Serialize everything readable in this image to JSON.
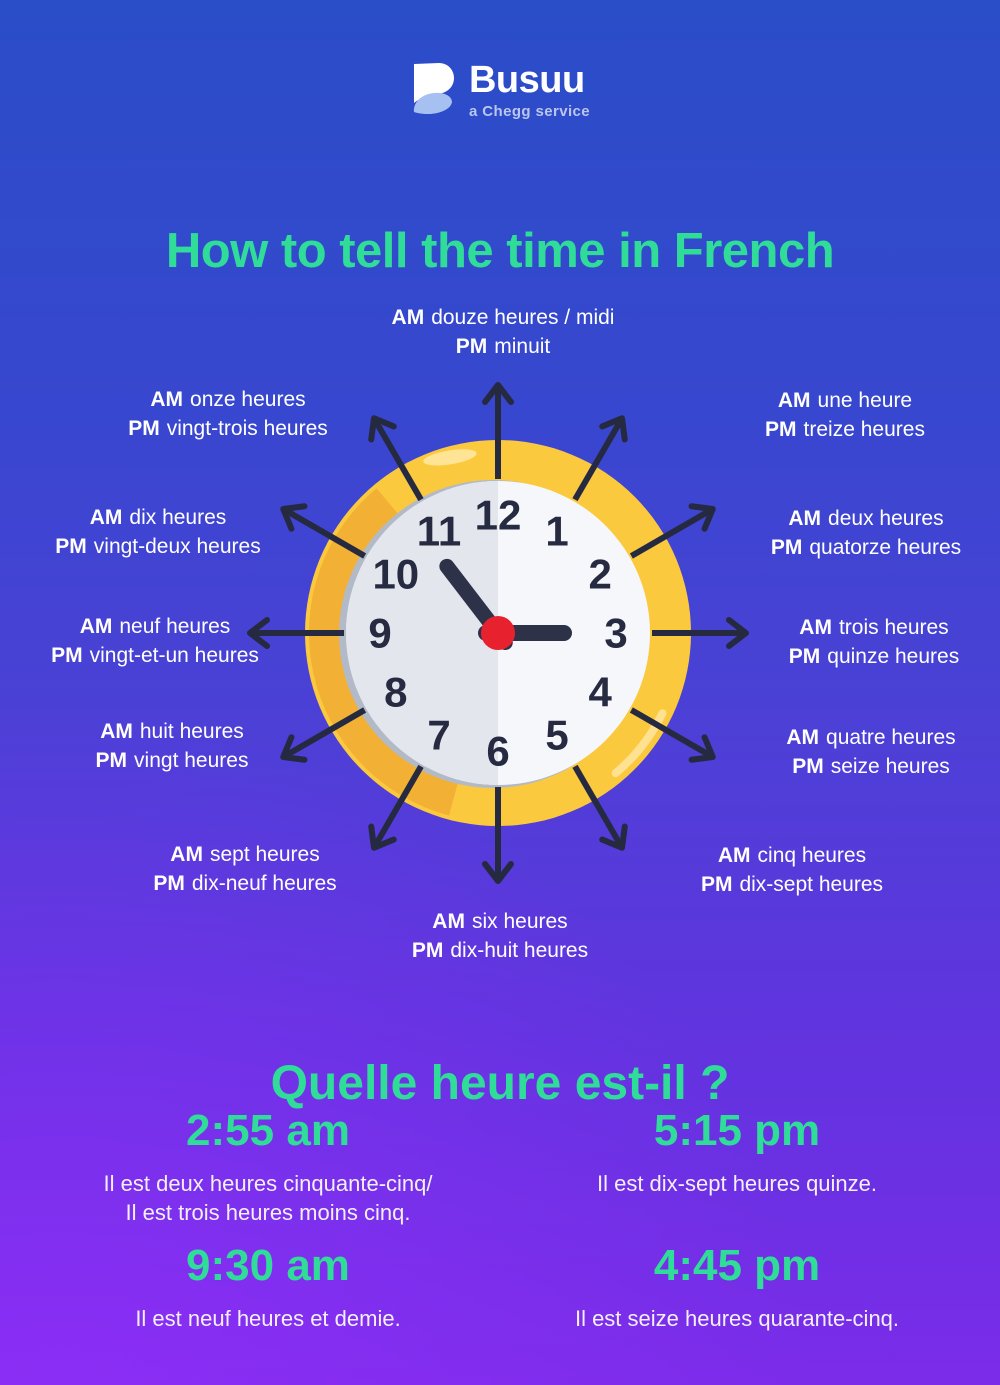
{
  "logo": {
    "brand": "Busuu",
    "subtitle": "a Chegg service"
  },
  "title": "How to tell the time in French",
  "clock": {
    "time_shown": "2:55",
    "numbers": [
      "12",
      "1",
      "2",
      "3",
      "4",
      "5",
      "6",
      "7",
      "8",
      "9",
      "10",
      "11"
    ],
    "hands": {
      "hour_angle_deg": 90,
      "minute_angle_deg": 322.5
    },
    "labels": [
      {
        "hour": "12",
        "am_tag": "AM",
        "am": "douze heures / midi",
        "pm_tag": "PM",
        "pm": "minuit"
      },
      {
        "hour": "1",
        "am_tag": "AM",
        "am": "une heure",
        "pm_tag": "PM",
        "pm": "treize heures"
      },
      {
        "hour": "2",
        "am_tag": "AM",
        "am": "deux heures",
        "pm_tag": "PM",
        "pm": "quatorze heures"
      },
      {
        "hour": "3",
        "am_tag": "AM",
        "am": "trois heures",
        "pm_tag": "PM",
        "pm": "quinze heures"
      },
      {
        "hour": "4",
        "am_tag": "AM",
        "am": "quatre heures",
        "pm_tag": "PM",
        "pm": "seize heures"
      },
      {
        "hour": "5",
        "am_tag": "AM",
        "am": "cinq heures",
        "pm_tag": "PM",
        "pm": "dix-sept heures"
      },
      {
        "hour": "6",
        "am_tag": "AM",
        "am": "six heures",
        "pm_tag": "PM",
        "pm": "dix-huit heures"
      },
      {
        "hour": "7",
        "am_tag": "AM",
        "am": "sept heures",
        "pm_tag": "PM",
        "pm": "dix-neuf heures"
      },
      {
        "hour": "8",
        "am_tag": "AM",
        "am": "huit heures",
        "pm_tag": "PM",
        "pm": "vingt heures"
      },
      {
        "hour": "9",
        "am_tag": "AM",
        "am": "neuf heures",
        "pm_tag": "PM",
        "pm": "vingt-et-un heures"
      },
      {
        "hour": "10",
        "am_tag": "AM",
        "am": "dix heures",
        "pm_tag": "PM",
        "pm": "vingt-deux heures"
      },
      {
        "hour": "11",
        "am_tag": "AM",
        "am": "onze heures",
        "pm_tag": "PM",
        "pm": "vingt-trois heures"
      }
    ]
  },
  "section": {
    "title": "Quelle heure est-il ?",
    "examples": [
      {
        "time": "2:55 am",
        "line1": "Il est deux heures cinquante-cinq/",
        "line2": "Il est trois heures moins cinq."
      },
      {
        "time": "5:15 pm",
        "line1": "Il est dix-sept heures quinze.",
        "line2": ""
      },
      {
        "time": "9:30 am",
        "line1": "Il est neuf heures et demie.",
        "line2": ""
      },
      {
        "time": "4:45 pm",
        "line1": "Il est seize heures quarante-cinq.",
        "line2": ""
      }
    ]
  },
  "colors": {
    "accent_green": "#2fdc98",
    "ring_yellow": "#fbc93e",
    "ring_shadow": "#f0ab33",
    "ring_highlight": "#ffe9a6",
    "face_left": "#e3e6ed",
    "face_right": "#f6f7fa",
    "face_shadow": "#b2bac8",
    "numbers": "#262b42",
    "hands": "#2e3249",
    "center_dot": "#e7222e",
    "arrows": "#262a40",
    "text_white": "#ffffff",
    "logo_subtitle": "#b9c6ee"
  }
}
